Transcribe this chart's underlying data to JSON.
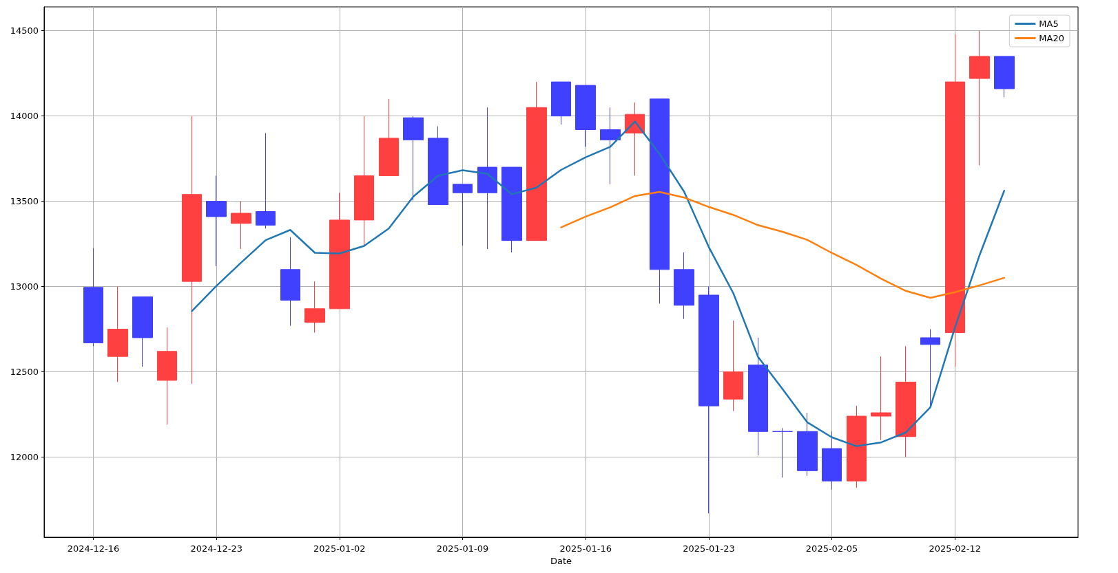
{
  "chart_data": {
    "type": "candlestick",
    "xlabel": "Date",
    "categories": [
      "2024-12-16",
      null,
      null,
      null,
      null,
      "2024-12-23",
      null,
      null,
      null,
      null,
      "2025-01-02",
      null,
      null,
      null,
      null,
      "2025-01-09",
      null,
      null,
      null,
      null,
      "2025-01-16",
      null,
      null,
      null,
      null,
      "2025-01-23",
      null,
      null,
      null,
      null,
      "2025-02-05",
      null,
      null,
      null,
      null,
      "2025-02-12",
      null,
      null
    ],
    "ohlc": [
      [
        12995,
        13225,
        12650,
        12670
      ],
      [
        12590,
        13000,
        12440,
        12750
      ],
      [
        12940,
        12940,
        12530,
        12700
      ],
      [
        12450,
        12760,
        12190,
        12620
      ],
      [
        13030,
        14000,
        12430,
        13540
      ],
      [
        13500,
        13650,
        13120,
        13410
      ],
      [
        13370,
        13500,
        13220,
        13430
      ],
      [
        13440,
        13900,
        13340,
        13360
      ],
      [
        13100,
        13290,
        12770,
        12920
      ],
      [
        12790,
        13030,
        12730,
        12870
      ],
      [
        12870,
        13550,
        12870,
        13390
      ],
      [
        13390,
        14000,
        13240,
        13650
      ],
      [
        13650,
        14100,
        13650,
        13870
      ],
      [
        13990,
        14000,
        13505,
        13860
      ],
      [
        13870,
        13940,
        13480,
        13480
      ],
      [
        13600,
        13600,
        13240,
        13550
      ],
      [
        13700,
        14050,
        13220,
        13550
      ],
      [
        13700,
        13700,
        13200,
        13270
      ],
      [
        13270,
        14200,
        13270,
        14050
      ],
      [
        14200,
        14200,
        13950,
        14000
      ],
      [
        14180,
        14180,
        13820,
        13920
      ],
      [
        13920,
        14050,
        13600,
        13860
      ],
      [
        13900,
        14080,
        13650,
        14010
      ],
      [
        14100,
        14100,
        12900,
        13100
      ],
      [
        13100,
        13200,
        12810,
        12890
      ],
      [
        12950,
        13000,
        11670,
        12300
      ],
      [
        12340,
        12800,
        12270,
        12500
      ],
      [
        12540,
        12700,
        12010,
        12150
      ],
      [
        12150,
        12170,
        11880,
        12150
      ],
      [
        12150,
        12260,
        11890,
        11920
      ],
      [
        12050,
        12150,
        11810,
        11860
      ],
      [
        11860,
        12300,
        11820,
        12240
      ],
      [
        12240,
        12590,
        12100,
        12260
      ],
      [
        12120,
        12650,
        12000,
        12440
      ],
      [
        12700,
        12750,
        12300,
        12660
      ],
      [
        12730,
        14480,
        12530,
        14200
      ],
      [
        14220,
        14500,
        13710,
        14350
      ],
      [
        14350,
        14350,
        14110,
        14160
      ]
    ],
    "colors": [
      "#4040ff",
      "#ff4040",
      "#4040ff",
      "#ff4040",
      "#ff4040",
      "#4040ff",
      "#ff4040",
      "#4040ff",
      "#4040ff",
      "#ff4040",
      "#ff4040",
      "#ff4040",
      "#ff4040",
      "#4040ff",
      "#4040ff",
      "#4040ff",
      "#4040ff",
      "#4040ff",
      "#ff4040",
      "#4040ff",
      "#4040ff",
      "#4040ff",
      "#ff4040",
      "#4040ff",
      "#4040ff",
      "#4040ff",
      "#ff4040",
      "#4040ff",
      "#4040ff",
      "#4040ff",
      "#4040ff",
      "#ff4040",
      "#ff4040",
      "#ff4040",
      "#4040ff",
      "#ff4040",
      "#ff4040",
      "#4040ff"
    ],
    "series": [
      {
        "name": "MA5",
        "type": "line",
        "color": "#1f77b4",
        "values": [
          null,
          null,
          null,
          null,
          12856,
          13004,
          13140,
          13272,
          13332,
          13198,
          13194,
          13238,
          13340,
          13528,
          13650,
          13682,
          13662,
          13542,
          13580,
          13684,
          13758,
          13820,
          13968,
          13778,
          13556,
          13232,
          12960,
          12588,
          12398,
          12204,
          12116,
          12064,
          12086,
          12144,
          12292,
          12760,
          13184,
          13562
        ]
      },
      {
        "name": "MA20",
        "type": "line",
        "color": "#ff7f0e",
        "values": [
          null,
          null,
          null,
          null,
          null,
          null,
          null,
          null,
          null,
          null,
          null,
          null,
          null,
          null,
          null,
          null,
          null,
          null,
          null,
          13347,
          13410,
          13465,
          13531,
          13555,
          13522,
          13467,
          13420,
          13360,
          13321,
          13274,
          13197,
          13127,
          13046,
          12975,
          12934,
          12967,
          13007,
          13051
        ]
      }
    ],
    "ylim": [
      11530,
      14640
    ],
    "yticks": [
      12000,
      12500,
      13000,
      13500,
      14000,
      14500
    ],
    "grid": true,
    "legend": "top right",
    "marker": "none",
    "line_style": "solid"
  }
}
